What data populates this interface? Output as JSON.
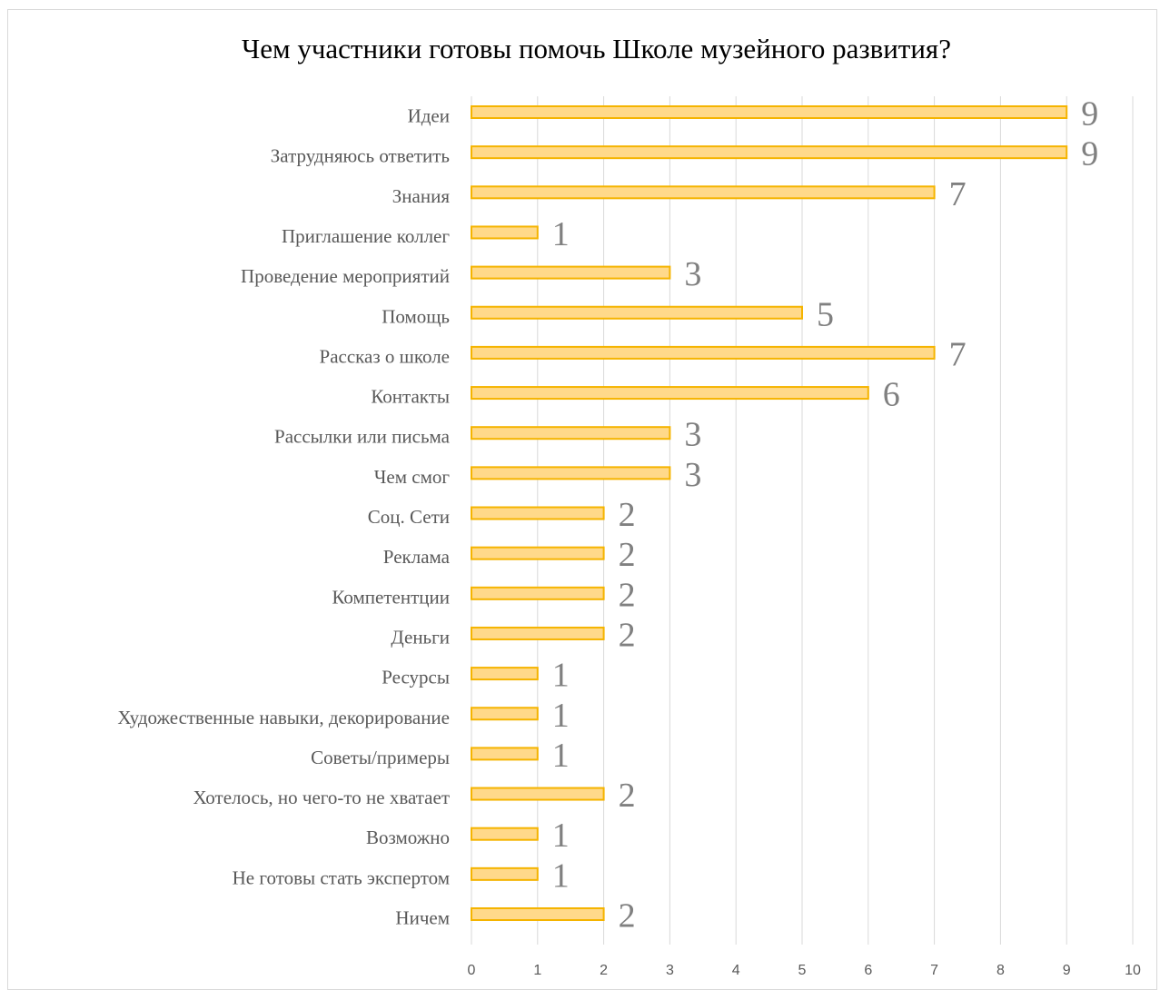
{
  "chart_data": {
    "type": "bar",
    "orientation": "horizontal",
    "title": "Чем участники готовы помочь Школе музейного развития?",
    "xlabel": "",
    "ylabel": "",
    "categories": [
      "Идеи",
      "Затрудняюсь ответить",
      "Знания",
      "Приглашение коллег",
      "Проведение мероприятий",
      "Помощь",
      "Рассказ о школе",
      "Контакты",
      "Рассылки или письма",
      "Чем смог",
      "Соц. Сети",
      "Реклама",
      "Компетентции",
      "Деньги",
      "Ресурсы",
      "Художественные навыки, декорирование",
      "Советы/примеры",
      "Хотелось, но чего-то не хватает",
      "Возможно",
      "Не готовы стать экспертом",
      "Ничем"
    ],
    "values": [
      9,
      9,
      7,
      1,
      3,
      5,
      7,
      6,
      3,
      3,
      2,
      2,
      2,
      2,
      1,
      1,
      1,
      2,
      1,
      1,
      2
    ],
    "xlim": [
      0,
      10
    ],
    "xticks": [
      "0",
      "1",
      "2",
      "3",
      "4",
      "5",
      "6",
      "7",
      "8",
      "9",
      "10"
    ],
    "grid": "vertical",
    "legend": "none",
    "data_labels": true,
    "colors": {
      "bar_fill": "#ffd98a",
      "bar_stroke": "#f5b400",
      "grid": "#d9d9d9",
      "label": "#595959",
      "data_label": "#808080"
    }
  }
}
